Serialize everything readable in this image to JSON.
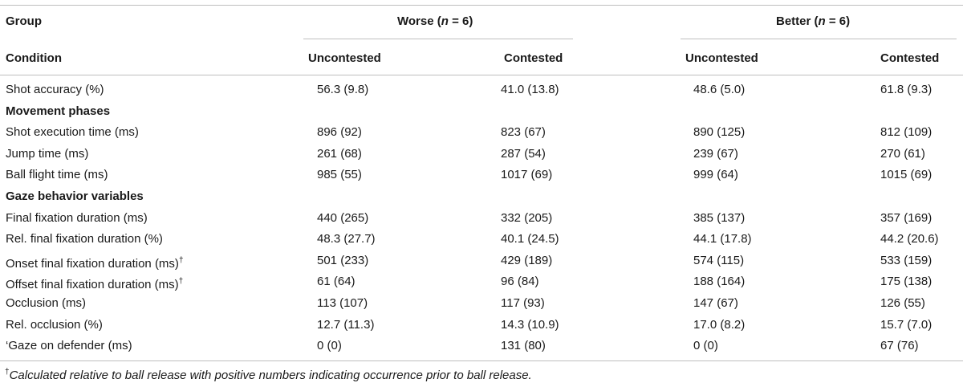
{
  "header": {
    "group_label": "Group",
    "worse_label": "Worse",
    "better_label": "Better",
    "n_prefix": "(",
    "n_var": "n",
    "n_value": " = 6)",
    "condition_label": "Condition",
    "uncontested": "Uncontested",
    "contested": "Contested"
  },
  "rows": [
    {
      "type": "data",
      "label": "Shot accuracy (%)",
      "values": [
        "56.3 (9.8)",
        "41.0 (13.8)",
        "48.6 (5.0)",
        "61.8 (9.3)"
      ]
    },
    {
      "type": "section",
      "label": "Movement phases"
    },
    {
      "type": "data",
      "label": "Shot execution time (ms)",
      "values": [
        "896 (92)",
        "823 (67)",
        "890 (125)",
        "812 (109)"
      ]
    },
    {
      "type": "data",
      "label": "Jump time (ms)",
      "values": [
        "261 (68)",
        "287 (54)",
        "239 (67)",
        "270 (61)"
      ]
    },
    {
      "type": "data",
      "label": "Ball flight time (ms)",
      "values": [
        "985 (55)",
        "1017 (69)",
        "999 (64)",
        "1015 (69)"
      ]
    },
    {
      "type": "section",
      "label": "Gaze behavior variables"
    },
    {
      "type": "data",
      "label": "Final fixation duration (ms)",
      "values": [
        "440 (265)",
        "332 (205)",
        "385 (137)",
        "357 (169)"
      ]
    },
    {
      "type": "data",
      "label": "Rel. final fixation duration (%)",
      "values": [
        "48.3 (27.7)",
        "40.1 (24.5)",
        "44.1 (17.8)",
        "44.2 (20.6)"
      ]
    },
    {
      "type": "data",
      "label": "Onset final fixation duration (ms)",
      "sup": "†",
      "values": [
        "501 (233)",
        "429 (189)",
        "574 (115)",
        "533 (159)"
      ]
    },
    {
      "type": "data",
      "label": "Offset final fixation duration (ms)",
      "sup": "†",
      "values": [
        "61 (64)",
        "96 (84)",
        "188 (164)",
        "175 (138)"
      ]
    },
    {
      "type": "data",
      "label": "Occlusion (ms)",
      "values": [
        "113 (107)",
        "117 (93)",
        "147 (67)",
        "126 (55)"
      ]
    },
    {
      "type": "data",
      "label": "Rel. occlusion (%)",
      "values": [
        "12.7 (11.3)",
        "14.3 (10.9)",
        "17.0 (8.2)",
        "15.7 (7.0)"
      ]
    },
    {
      "type": "data",
      "label": "‘Gaze on defender (ms)",
      "values": [
        "0 (0)",
        "131 (80)",
        "0 (0)",
        "67 (76)"
      ]
    }
  ],
  "footnote": {
    "symbol": "†",
    "text": "Calculated relative to ball release with positive numbers indicating occurrence prior to ball release."
  }
}
